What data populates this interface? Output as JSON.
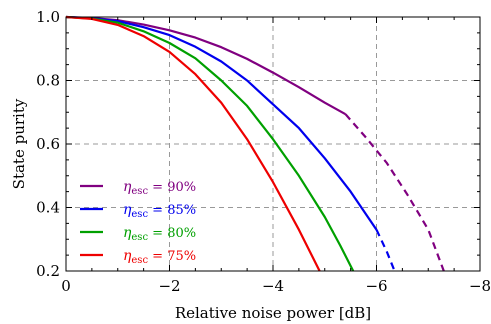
{
  "chart_data": {
    "type": "line",
    "title": "",
    "xlabel": "Relative noise power [dB]",
    "ylabel": "State purity",
    "xlim": [
      0,
      -8
    ],
    "ylim": [
      0.2,
      1.0
    ],
    "x_ticks": [
      0,
      -2,
      -4,
      -6,
      -8
    ],
    "x_tick_labels": [
      "0",
      "−2",
      "−4",
      "−6",
      "−8"
    ],
    "y_ticks": [
      0.2,
      0.4,
      0.6,
      0.8,
      1.0
    ],
    "y_tick_labels": [
      "0.2",
      "0.4",
      "0.6",
      "0.8",
      "1.0"
    ],
    "grid": {
      "vertical": [
        -2,
        -4,
        -6
      ],
      "horizontal": [
        0.4,
        0.6,
        0.8
      ],
      "style": "dashed"
    },
    "legend_position": "bottom-left",
    "series": [
      {
        "name": "ηesc = 90%",
        "legend_symbol": "η",
        "legend_sub": "esc",
        "legend_value": " = 90%",
        "color": "#800080",
        "solid_until": -5.4,
        "x": [
          0,
          -0.5,
          -1,
          -1.5,
          -2,
          -2.5,
          -3,
          -3.5,
          -4,
          -4.5,
          -5,
          -5.4,
          -5.8,
          -6.2,
          -6.6,
          -7.0,
          -7.3
        ],
        "y": [
          1.0,
          0.997,
          0.99,
          0.976,
          0.958,
          0.935,
          0.905,
          0.868,
          0.825,
          0.779,
          0.73,
          0.694,
          0.62,
          0.54,
          0.44,
          0.33,
          0.2
        ]
      },
      {
        "name": "ηesc = 85%",
        "legend_symbol": "η",
        "legend_sub": "esc",
        "legend_value": " = 85%",
        "color": "#0000ee",
        "solid_until": -6.0,
        "x": [
          0,
          -0.5,
          -1,
          -1.5,
          -2,
          -2.5,
          -3,
          -3.5,
          -4,
          -4.5,
          -5,
          -5.5,
          -6.0,
          -6.2,
          -6.35
        ],
        "y": [
          1.0,
          0.996,
          0.987,
          0.968,
          0.943,
          0.906,
          0.86,
          0.8,
          0.725,
          0.65,
          0.555,
          0.45,
          0.33,
          0.26,
          0.2
        ]
      },
      {
        "name": "ηesc = 80%",
        "legend_symbol": "η",
        "legend_sub": "esc",
        "legend_value": " = 80%",
        "color": "#00a000",
        "solid_until": -5.55,
        "x": [
          0,
          -0.5,
          -1,
          -1.5,
          -2,
          -2.5,
          -3,
          -3.5,
          -4,
          -4.5,
          -5,
          -5.3,
          -5.55
        ],
        "y": [
          1.0,
          0.995,
          0.982,
          0.955,
          0.918,
          0.87,
          0.8,
          0.72,
          0.615,
          0.5,
          0.37,
          0.28,
          0.2
        ]
      },
      {
        "name": "ηesc = 75%",
        "legend_symbol": "η",
        "legend_sub": "esc",
        "legend_value": " = 75%",
        "color": "#ee0000",
        "solid_until": -4.9,
        "x": [
          0,
          -0.5,
          -1,
          -1.5,
          -2,
          -2.5,
          -3,
          -3.5,
          -4,
          -4.5,
          -4.9
        ],
        "y": [
          1.0,
          0.994,
          0.975,
          0.94,
          0.89,
          0.82,
          0.73,
          0.615,
          0.48,
          0.33,
          0.2
        ]
      }
    ]
  }
}
